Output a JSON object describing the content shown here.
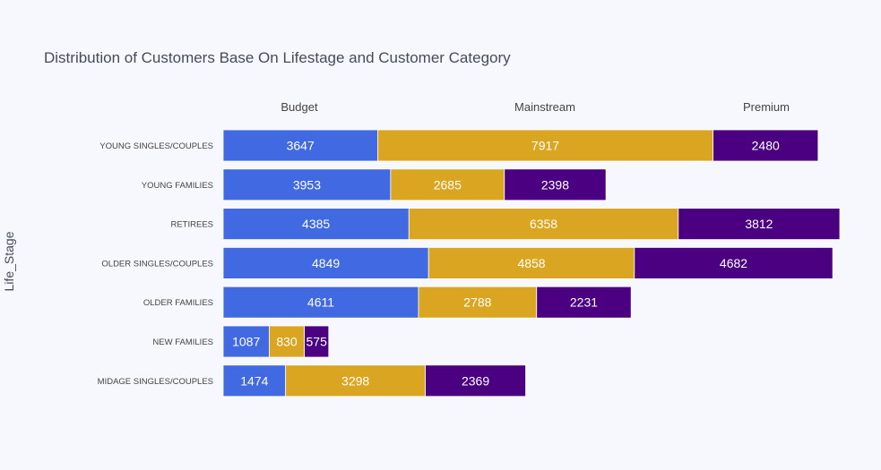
{
  "chart_data": {
    "type": "bar",
    "orientation": "horizontal",
    "barmode": "stack",
    "title": "Distribution of Customers Base On Lifestage and Customer Category",
    "xlabel": "",
    "ylabel": "Life_Stage",
    "legend_position": "top",
    "grid": false,
    "categories": [
      "YOUNG SINGLES/COUPLES",
      "YOUNG FAMILIES",
      "RETIREES",
      "OLDER SINGLES/COUPLES",
      "OLDER FAMILIES",
      "NEW FAMILIES",
      "MIDAGE SINGLES/COUPLES"
    ],
    "series": [
      {
        "name": "Budget",
        "color": "#4169e1",
        "values": [
          3647,
          3953,
          4385,
          4849,
          4611,
          1087,
          1474
        ]
      },
      {
        "name": "Mainstream",
        "color": "#daa520",
        "values": [
          7917,
          2685,
          6358,
          4858,
          2788,
          830,
          3298
        ]
      },
      {
        "name": "Premium",
        "color": "#4b0082",
        "values": [
          2480,
          2398,
          3812,
          4682,
          2231,
          575,
          2369
        ]
      }
    ],
    "xlim": [
      0,
      14555
    ]
  }
}
